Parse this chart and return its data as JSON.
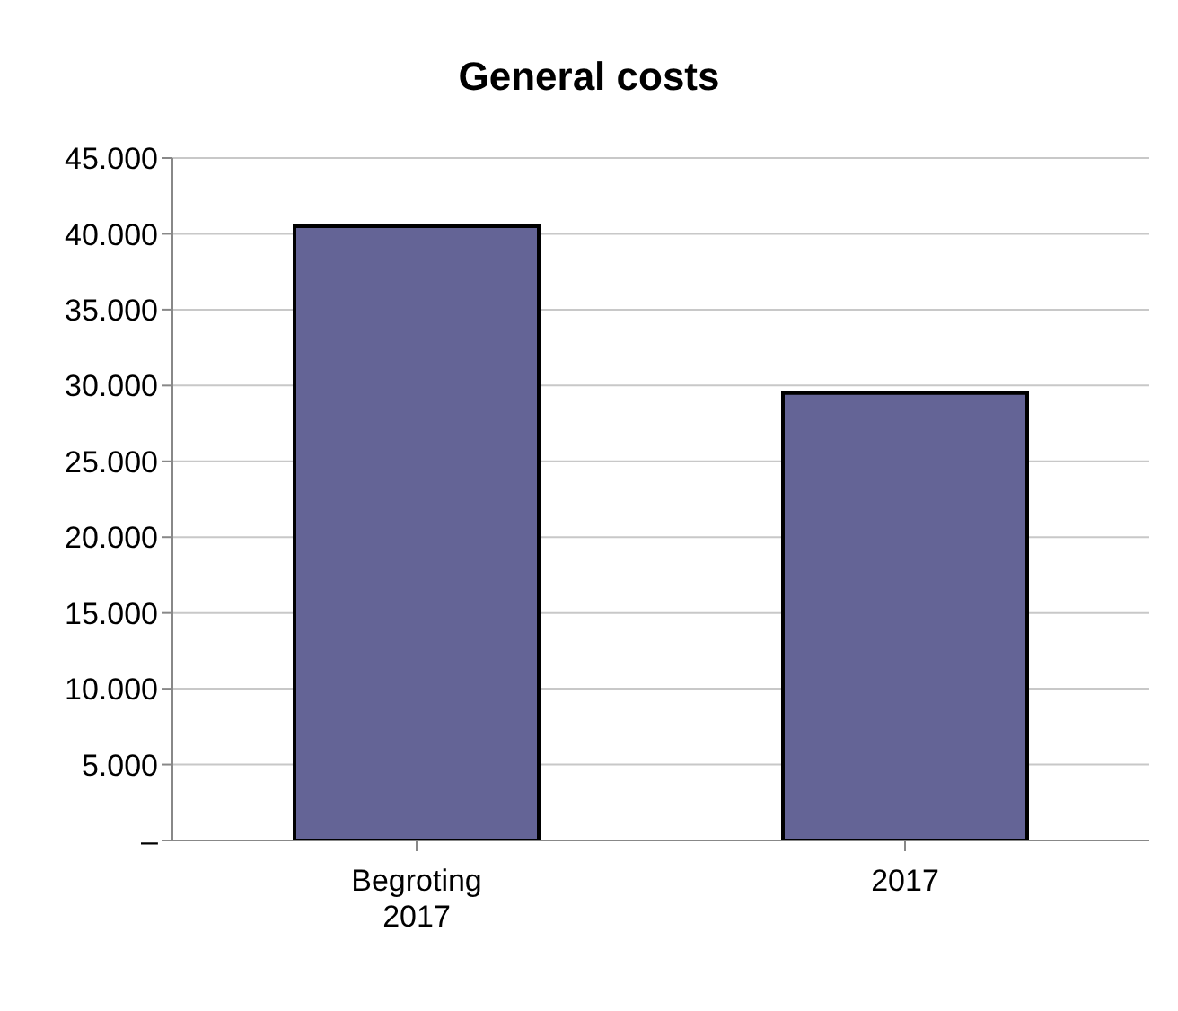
{
  "chart_data": {
    "type": "bar",
    "title": "General costs",
    "categories": [
      "Begroting 2017",
      "2017"
    ],
    "values": [
      40500,
      29500
    ],
    "color": "#646496",
    "ylim": [
      0,
      45000
    ],
    "yticks": [
      {
        "value": 0,
        "label": "–"
      },
      {
        "value": 5000,
        "label": "5.000"
      },
      {
        "value": 10000,
        "label": "10.000"
      },
      {
        "value": 15000,
        "label": "15.000"
      },
      {
        "value": 20000,
        "label": "20.000"
      },
      {
        "value": 25000,
        "label": "25.000"
      },
      {
        "value": 30000,
        "label": "30.000"
      },
      {
        "value": 35000,
        "label": "35.000"
      },
      {
        "value": 40000,
        "label": "40.000"
      },
      {
        "value": 45000,
        "label": "45.000"
      }
    ],
    "grid": "y"
  }
}
